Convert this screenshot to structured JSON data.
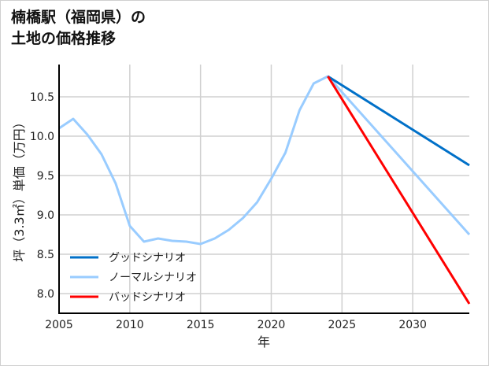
{
  "chart_data": {
    "type": "line",
    "title_lines": [
      "楠橋駅（福岡県）の",
      "土地の価格推移"
    ],
    "xlabel": "年",
    "ylabel": "坪（3.3㎡）単価（万円）",
    "xlim": [
      2005,
      2034
    ],
    "ylim": [
      7.75,
      10.91
    ],
    "xticks": [
      2005,
      2010,
      2015,
      2020,
      2025,
      2030
    ],
    "yticks": [
      8.0,
      8.5,
      9.0,
      9.5,
      10.0,
      10.5
    ],
    "ytick_labels": [
      "8.0",
      "8.5",
      "9.0",
      "9.5",
      "10.0",
      "10.5"
    ],
    "grid": true,
    "legend_position": "bottom-left",
    "series": [
      {
        "name": "グッドシナリオ",
        "color": "#0070c8",
        "x": [
          2024,
          2034
        ],
        "y": [
          10.76,
          9.63
        ]
      },
      {
        "name": "ノーマルシナリオ",
        "color": "#99ccff",
        "x": [
          2005,
          2006,
          2007,
          2008,
          2009,
          2010,
          2011,
          2012,
          2013,
          2014,
          2015,
          2016,
          2017,
          2018,
          2019,
          2020,
          2021,
          2022,
          2023,
          2024,
          2034
        ],
        "y": [
          10.1,
          10.22,
          10.02,
          9.77,
          9.4,
          8.86,
          8.66,
          8.7,
          8.67,
          8.66,
          8.63,
          8.7,
          8.81,
          8.96,
          9.16,
          9.46,
          9.79,
          10.33,
          10.67,
          10.76,
          8.75
        ]
      },
      {
        "name": "バッドシナリオ",
        "color": "#ff0000",
        "x": [
          2024,
          2034
        ],
        "y": [
          10.76,
          7.87
        ]
      }
    ]
  }
}
